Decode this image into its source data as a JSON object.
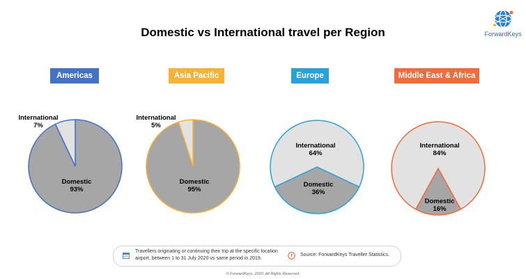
{
  "title": "Domestic vs International travel per Region",
  "logo": {
    "text": "ForwardKeys",
    "icon": "globe-icon"
  },
  "colors": {
    "domestic": "#a6a6a6",
    "international": "#e2e2e2"
  },
  "chart_data": [
    {
      "type": "pie",
      "title": "Americas",
      "accent": "#4472c4",
      "slices": [
        {
          "label": "International",
          "value": 7
        },
        {
          "label": "Domestic",
          "value": 93
        }
      ]
    },
    {
      "type": "pie",
      "title": "Asia Pacific",
      "accent": "#f5b335",
      "slices": [
        {
          "label": "International",
          "value": 5
        },
        {
          "label": "Domestic",
          "value": 95
        }
      ]
    },
    {
      "type": "pie",
      "title": "Europe",
      "accent": "#26a3dd",
      "slices": [
        {
          "label": "International",
          "value": 64
        },
        {
          "label": "Domestic",
          "value": 36
        }
      ]
    },
    {
      "type": "pie",
      "title": "Middle East & Africa",
      "accent": "#f26b3a",
      "slices": [
        {
          "label": "International",
          "value": 84
        },
        {
          "label": "Domestic",
          "value": 16
        }
      ]
    }
  ],
  "footer": {
    "note_icon": "calendar-icon",
    "note": "Travellers originating or continuing their trip at the specific location airport, between 1 to 31 July 2020 vs same period in 2019.",
    "source_icon": "info-icon",
    "source": "Source: ForwardKeys Traveller Statistics.",
    "copyright": "© ForwardKeys, 2020. All Rights Reserved."
  }
}
